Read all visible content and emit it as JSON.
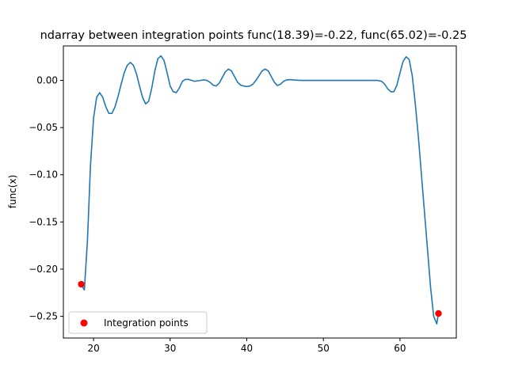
{
  "chart_data": {
    "type": "line",
    "title": "ndarray between integration points func(18.39)=-0.22, func(65.02)=-0.25",
    "xlabel": "",
    "ylabel": "func(x)",
    "xlim": [
      16.06,
      67.35
    ],
    "ylim": [
      -0.273,
      0.0365
    ],
    "x_ticks": [
      20,
      30,
      40,
      50,
      60
    ],
    "y_ticks": [
      0.0,
      -0.05,
      -0.1,
      -0.15,
      -0.2,
      -0.25
    ],
    "y_tick_labels": [
      "0.00",
      "−0.05",
      "−0.10",
      "−0.15",
      "−0.20",
      "−0.25"
    ],
    "grid": false,
    "legend_position": "lower-left",
    "line_color": "#1f77b4",
    "marker_color": "#ff0000",
    "series": [
      {
        "name": "",
        "x": [
          18.39,
          18.8,
          19.2,
          19.6,
          20.0,
          20.4,
          20.8,
          21.2,
          21.6,
          22.0,
          22.4,
          22.8,
          23.2,
          23.6,
          24.0,
          24.4,
          24.8,
          25.2,
          25.6,
          26.0,
          26.4,
          26.8,
          27.2,
          27.6,
          28.0,
          28.4,
          28.8,
          29.2,
          29.6,
          30.0,
          30.4,
          30.8,
          31.2,
          31.6,
          32.0,
          32.4,
          32.8,
          33.2,
          33.6,
          34.0,
          34.4,
          34.8,
          35.2,
          35.6,
          36.0,
          36.4,
          36.8,
          37.2,
          37.6,
          38.0,
          38.4,
          38.8,
          39.2,
          39.6,
          40.0,
          40.4,
          40.8,
          41.2,
          41.6,
          42.0,
          42.4,
          42.8,
          43.2,
          43.6,
          44.0,
          44.4,
          44.8,
          45.2,
          45.6,
          46.0,
          47.0,
          48.0,
          50.0,
          52.0,
          54.0,
          56.0,
          57.0,
          57.6,
          58.0,
          58.4,
          58.8,
          59.2,
          59.6,
          60.0,
          60.4,
          60.8,
          61.2,
          61.6,
          62.0,
          62.4,
          62.8,
          63.2,
          63.6,
          64.0,
          64.4,
          64.8,
          65.02
        ],
        "y": [
          -0.216,
          -0.222,
          -0.17,
          -0.09,
          -0.04,
          -0.018,
          -0.013,
          -0.018,
          -0.028,
          -0.035,
          -0.035,
          -0.028,
          -0.017,
          -0.004,
          0.008,
          0.016,
          0.019,
          0.016,
          0.007,
          -0.006,
          -0.018,
          -0.025,
          -0.022,
          -0.008,
          0.01,
          0.023,
          0.026,
          0.021,
          0.008,
          -0.006,
          -0.012,
          -0.013,
          -0.008,
          -0.001,
          0.001,
          0.001,
          0.0,
          -0.001,
          -0.0005,
          0.0,
          0.0005,
          0.0,
          -0.002,
          -0.005,
          -0.006,
          -0.003,
          0.003,
          0.009,
          0.012,
          0.01,
          0.004,
          -0.002,
          -0.005,
          -0.006,
          -0.0065,
          -0.006,
          -0.004,
          0.0,
          0.005,
          0.01,
          0.012,
          0.01,
          0.004,
          -0.002,
          -0.0055,
          -0.004,
          -0.001,
          0.0005,
          0.0008,
          0.0005,
          0.0,
          0.0,
          0.0,
          0.0,
          0.0,
          0.0,
          0.0,
          -0.001,
          -0.004,
          -0.009,
          -0.012,
          -0.012,
          -0.005,
          0.008,
          0.02,
          0.025,
          0.022,
          0.005,
          -0.025,
          -0.06,
          -0.1,
          -0.14,
          -0.18,
          -0.22,
          -0.25,
          -0.258,
          -0.247
        ]
      },
      {
        "name": "Integration points",
        "type": "scatter",
        "x": [
          18.39,
          65.02
        ],
        "y": [
          -0.216,
          -0.247
        ]
      }
    ]
  }
}
